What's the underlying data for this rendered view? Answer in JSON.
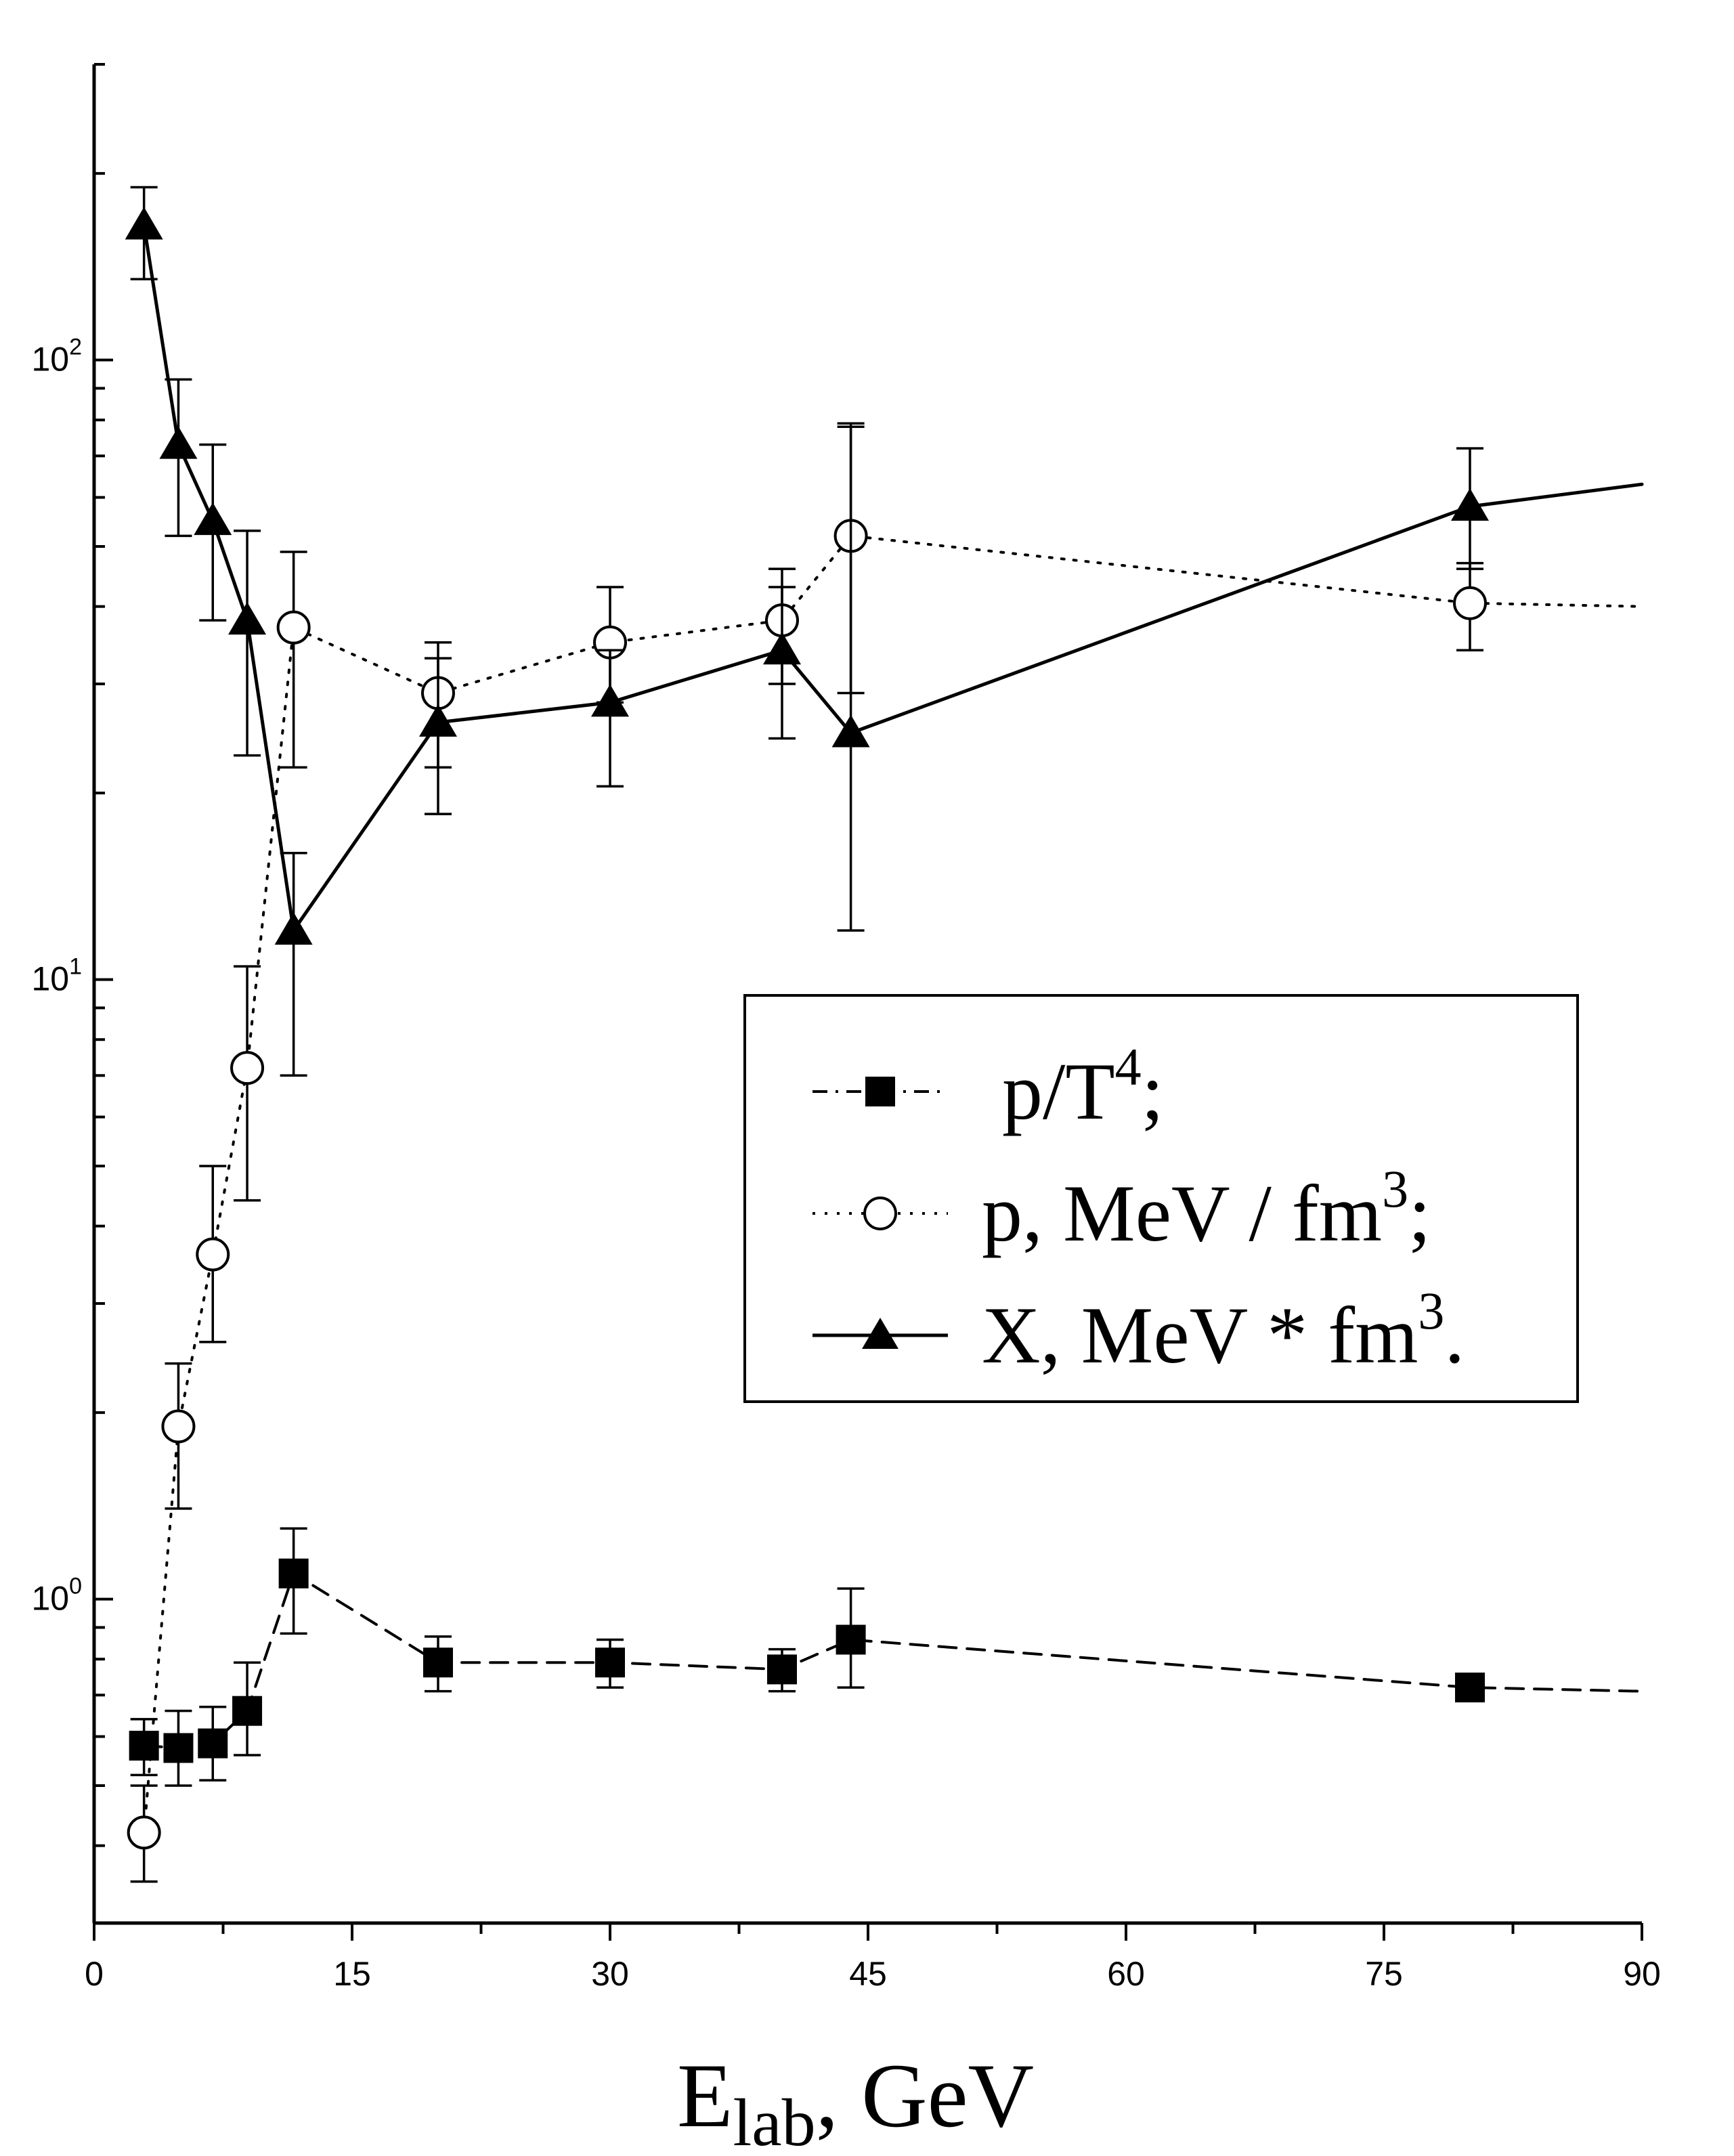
{
  "chart_data": {
    "type": "line",
    "title": "",
    "xlabel": {
      "main": "E",
      "sub": "lab",
      "rest": ", GeV"
    },
    "ylabel": "",
    "xlim": [
      0,
      90
    ],
    "ylim": [
      0.3,
      300
    ],
    "yscale": "log",
    "x_ticks": [
      "0",
      "15",
      "30",
      "45",
      "60",
      "75",
      "90"
    ],
    "y_ticks": [
      {
        "base": "10",
        "exp": "0",
        "value": 1
      },
      {
        "base": "10",
        "exp": "1",
        "value": 10
      },
      {
        "base": "10",
        "exp": "2",
        "value": 100
      }
    ],
    "grid": false,
    "legend_position": "right-middle",
    "series": [
      {
        "name": "p/T⁴",
        "legend": {
          "text": "p/T",
          "sup": "4",
          "end": ";"
        },
        "marker": "filled-square",
        "line": "dashed",
        "color": "#000000",
        "points": [
          {
            "x": 2.9,
            "y": 0.58,
            "lo": 0.52,
            "hi": 0.64
          },
          {
            "x": 4.9,
            "y": 0.575,
            "lo": 0.5,
            "hi": 0.66
          },
          {
            "x": 6.9,
            "y": 0.585,
            "lo": 0.51,
            "hi": 0.67
          },
          {
            "x": 8.9,
            "y": 0.66,
            "lo": 0.56,
            "hi": 0.79
          },
          {
            "x": 11.6,
            "y": 1.1,
            "lo": 0.88,
            "hi": 1.3
          },
          {
            "x": 20,
            "y": 0.79,
            "lo": 0.71,
            "hi": 0.87
          },
          {
            "x": 30,
            "y": 0.79,
            "lo": 0.72,
            "hi": 0.86
          },
          {
            "x": 40,
            "y": 0.77,
            "lo": 0.71,
            "hi": 0.83
          },
          {
            "x": 44,
            "y": 0.86,
            "lo": 0.72,
            "hi": 1.04
          },
          {
            "x": 80,
            "y": 0.72,
            "lo": 0.69,
            "hi": 0.75
          }
        ],
        "extension": {
          "x": 90,
          "y": 0.71
        }
      },
      {
        "name": "p, MeV / fm³",
        "legend": {
          "text": "p, MeV / fm",
          "sup": "3",
          "end": ";"
        },
        "marker": "open-circle",
        "line": "dotted",
        "color": "#000000",
        "points": [
          {
            "x": 2.9,
            "y": 0.42,
            "lo": 0.35,
            "hi": 0.5
          },
          {
            "x": 4.9,
            "y": 1.9,
            "lo": 1.4,
            "hi": 2.4
          },
          {
            "x": 6.9,
            "y": 3.6,
            "lo": 2.6,
            "hi": 5.0
          },
          {
            "x": 8.9,
            "y": 7.2,
            "lo": 4.4,
            "hi": 10.5
          },
          {
            "x": 11.6,
            "y": 37,
            "lo": 22,
            "hi": 49
          },
          {
            "x": 20,
            "y": 29,
            "lo": 22,
            "hi": 35
          },
          {
            "x": 30,
            "y": 35,
            "lo": 28,
            "hi": 43
          },
          {
            "x": 40,
            "y": 38,
            "lo": 30,
            "hi": 46
          },
          {
            "x": 44,
            "y": 52,
            "lo": 29,
            "hi": 79
          },
          {
            "x": 80,
            "y": 40.5,
            "lo": 34,
            "hi": 47
          }
        ],
        "extension": {
          "x": 90,
          "y": 40
        }
      },
      {
        "name": "X, MeV * fm³",
        "legend": {
          "text": "X, MeV * fm",
          "sup": "3",
          "end": "."
        },
        "marker": "filled-triangle",
        "line": "solid",
        "color": "#000000",
        "points": [
          {
            "x": 2.9,
            "y": 165,
            "lo": 135,
            "hi": 190
          },
          {
            "x": 4.9,
            "y": 73,
            "lo": 52,
            "hi": 93
          },
          {
            "x": 6.9,
            "y": 55,
            "lo": 38,
            "hi": 73
          },
          {
            "x": 8.9,
            "y": 38,
            "lo": 23,
            "hi": 53
          },
          {
            "x": 11.6,
            "y": 12,
            "lo": 7,
            "hi": 16
          },
          {
            "x": 20,
            "y": 26,
            "lo": 18.5,
            "hi": 33
          },
          {
            "x": 30,
            "y": 28,
            "lo": 20.5,
            "hi": 34
          },
          {
            "x": 40,
            "y": 34,
            "lo": 24.5,
            "hi": 43
          },
          {
            "x": 44,
            "y": 25,
            "lo": 12,
            "hi": 78
          },
          {
            "x": 80,
            "y": 58,
            "lo": 46,
            "hi": 72
          }
        ],
        "extension": {
          "x": 90,
          "y": 63
        }
      }
    ]
  }
}
